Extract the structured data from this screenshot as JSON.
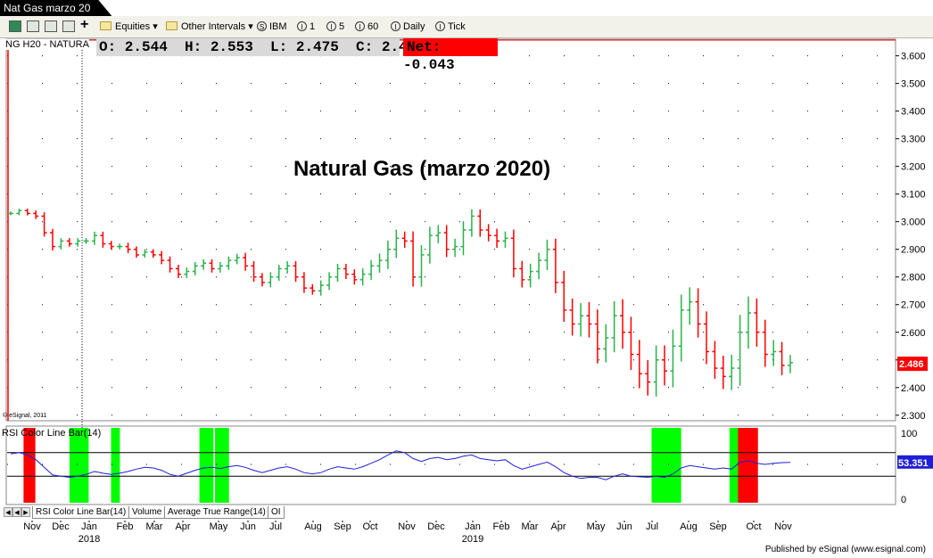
{
  "window": {
    "title": "Nat Gas marzo 20"
  },
  "toolbar": {
    "equities_label": "Equities",
    "other_intervals_label": "Other Intervals",
    "intervals": [
      {
        "icon": "S",
        "label": "IBM"
      },
      {
        "icon": "I",
        "label": "1"
      },
      {
        "icon": "I",
        "label": "5"
      },
      {
        "icon": "I",
        "label": "60"
      },
      {
        "icon": "I",
        "label": "Daily"
      },
      {
        "icon": "I",
        "label": "Tick"
      }
    ]
  },
  "quote": {
    "symbol": "NG H20 - NATURA",
    "ohlc_text": "O: 2.544  H: 2.553  L: 2.475  C: 2.486",
    "net_text": "Net: -0.043"
  },
  "copyright": "© eSignal, 2011",
  "footer": "Published by eSignal (www.esignal.com)",
  "tabs": [
    {
      "label": "RSI Color Line Bar(14)",
      "active": true
    },
    {
      "label": "Volume",
      "active": false
    },
    {
      "label": "Average True Range(14)",
      "active": false
    },
    {
      "label": "OI",
      "active": false
    }
  ],
  "colors": {
    "up": "#2bb24c",
    "down": "#ff0000",
    "rsi_line": "#1f1fd6",
    "highlight_green": "#00ff00",
    "highlight_red": "#ff0000",
    "last_price_bg": "#ff0000",
    "rsi_value_bg": "#1f1fd6"
  },
  "chart_data": [
    {
      "type": "ohlc",
      "title": "Natural Gas (marzo 2020)",
      "y_ticks": [
        "2.300",
        "2.400",
        "2.500",
        "2.600",
        "2.700",
        "2.800",
        "2.900",
        "3.000",
        "3.100",
        "3.200",
        "3.300",
        "3.400",
        "3.500",
        "3.600"
      ],
      "ylim": [
        2.28,
        3.66
      ],
      "last_price_label": "2.486",
      "x_month_labels": [
        "Nov",
        "Dec",
        "Jan",
        "Feb",
        "Mar",
        "Apr",
        "May",
        "Jun",
        "Jul",
        "Aug",
        "Sep",
        "Oct",
        "Nov",
        "Dec",
        "Jan",
        "Feb",
        "Mar",
        "Apr",
        "May",
        "Jun",
        "Jul",
        "Aug",
        "Sep",
        "Oct",
        "Nov"
      ],
      "x_year_labels": [
        "2018",
        "2019"
      ],
      "weekly_closes": [
        3.03,
        3.04,
        3.03,
        3.02,
        2.96,
        2.91,
        2.93,
        2.92,
        2.93,
        2.93,
        2.95,
        2.92,
        2.91,
        2.91,
        2.9,
        2.88,
        2.89,
        2.88,
        2.86,
        2.83,
        2.81,
        2.82,
        2.84,
        2.85,
        2.83,
        2.84,
        2.86,
        2.87,
        2.84,
        2.8,
        2.78,
        2.8,
        2.83,
        2.84,
        2.8,
        2.76,
        2.75,
        2.77,
        2.8,
        2.83,
        2.81,
        2.79,
        2.81,
        2.84,
        2.86,
        2.9,
        2.94,
        2.93,
        2.8,
        2.88,
        2.95,
        2.96,
        2.9,
        2.91,
        2.97,
        3.02,
        2.97,
        2.95,
        2.93,
        2.94,
        2.83,
        2.79,
        2.82,
        2.86,
        2.9,
        2.78,
        2.68,
        2.63,
        2.66,
        2.63,
        2.54,
        2.58,
        2.66,
        2.6,
        2.52,
        2.45,
        2.42,
        2.5,
        2.46,
        2.55,
        2.68,
        2.71,
        2.63,
        2.53,
        2.47,
        2.44,
        2.47,
        2.6,
        2.67,
        2.6,
        2.52,
        2.53,
        2.48,
        2.49
      ],
      "weekly_ranges": [
        0.02,
        0.02,
        0.02,
        0.03,
        0.04,
        0.04,
        0.03,
        0.03,
        0.03,
        0.03,
        0.04,
        0.04,
        0.03,
        0.03,
        0.04,
        0.03,
        0.03,
        0.03,
        0.04,
        0.04,
        0.04,
        0.04,
        0.04,
        0.04,
        0.04,
        0.04,
        0.04,
        0.04,
        0.05,
        0.05,
        0.04,
        0.05,
        0.04,
        0.05,
        0.05,
        0.05,
        0.04,
        0.05,
        0.05,
        0.05,
        0.05,
        0.05,
        0.06,
        0.06,
        0.07,
        0.09,
        0.09,
        0.07,
        0.1,
        0.1,
        0.09,
        0.08,
        0.08,
        0.08,
        0.09,
        0.07,
        0.07,
        0.06,
        0.07,
        0.07,
        0.09,
        0.08,
        0.08,
        0.08,
        0.1,
        0.11,
        0.12,
        0.12,
        0.13,
        0.14,
        0.15,
        0.14,
        0.15,
        0.17,
        0.16,
        0.15,
        0.14,
        0.15,
        0.15,
        0.17,
        0.16,
        0.15,
        0.14,
        0.13,
        0.11,
        0.13,
        0.14,
        0.18,
        0.17,
        0.15,
        0.13,
        0.12,
        0.1,
        0.08
      ]
    },
    {
      "type": "line",
      "title": "RSI Color Line Bar(14)",
      "y_ticks": [
        "100",
        "0"
      ],
      "ylim": [
        0,
        100
      ],
      "reference_levels": [
        70,
        30
      ],
      "last_value_label": "53.351",
      "values": [
        68,
        70,
        66,
        58,
        45,
        32,
        30,
        28,
        30,
        33,
        38,
        35,
        33,
        35,
        38,
        42,
        45,
        44,
        40,
        33,
        30,
        35,
        40,
        44,
        45,
        43,
        46,
        48,
        45,
        40,
        36,
        40,
        44,
        46,
        42,
        36,
        34,
        36,
        42,
        46,
        44,
        42,
        46,
        52,
        58,
        66,
        73,
        70,
        60,
        55,
        60,
        62,
        58,
        60,
        64,
        66,
        60,
        58,
        56,
        58,
        48,
        42,
        46,
        50,
        54,
        46,
        36,
        30,
        26,
        28,
        28,
        24,
        30,
        34,
        30,
        29,
        28,
        30,
        28,
        34,
        44,
        48,
        46,
        44,
        42,
        44,
        42,
        54,
        56,
        52,
        50,
        52,
        53,
        53.35
      ],
      "green_zones_week_index": [
        [
          12,
          14
        ],
        [
          20,
          20
        ],
        [
          37,
          38
        ],
        [
          40,
          41
        ],
        [
          124,
          128
        ],
        [
          139,
          140
        ]
      ],
      "red_zones_week_index": [
        [
          2,
          2
        ],
        [
          89,
          90
        ]
      ]
    }
  ]
}
